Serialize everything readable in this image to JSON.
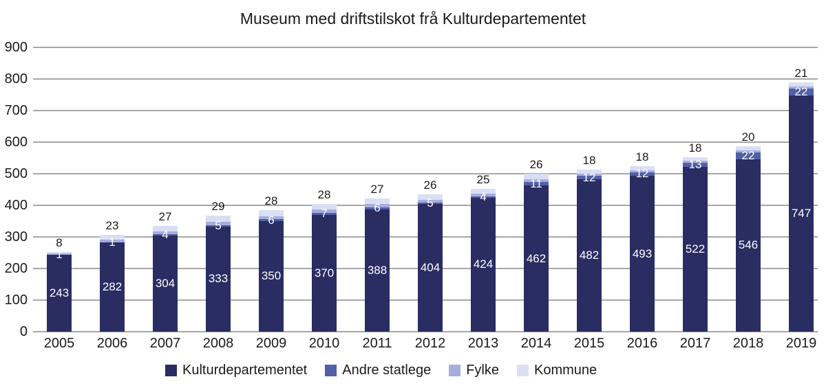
{
  "title": "Museum med driftstilskot frå Kulturdepartementet",
  "chart_data": {
    "type": "bar",
    "stacked": true,
    "title": "Museum med driftstilskot frå Kulturdepartementet",
    "categories": [
      "2005",
      "2006",
      "2007",
      "2008",
      "2009",
      "2010",
      "2011",
      "2012",
      "2013",
      "2014",
      "2015",
      "2016",
      "2017",
      "2018",
      "2019"
    ],
    "series": [
      {
        "name": "Kulturdepartementet",
        "color": "#2a2d62",
        "values": [
          243,
          282,
          304,
          333,
          350,
          370,
          388,
          404,
          424,
          462,
          482,
          493,
          522,
          546,
          747
        ],
        "label_placement": "inside-center-white"
      },
      {
        "name": "Andre statlege",
        "color": "#5360a7",
        "values": [
          1,
          1,
          4,
          5,
          6,
          7,
          6,
          5,
          4,
          11,
          12,
          12,
          13,
          22,
          22
        ],
        "label_placement": "inside-center-white"
      },
      {
        "name": "Fylke",
        "color": "#a5aedd",
        "label_placement": "none"
      },
      {
        "name": "Kommune",
        "color": "#dbdff4",
        "label_placement": "none"
      }
    ],
    "outside_labels": {
      "note": "black labels above each bar; thin Fylke + Kommune cap segments",
      "values": [
        8,
        23,
        27,
        29,
        28,
        28,
        27,
        26,
        25,
        26,
        18,
        18,
        18,
        20,
        21
      ]
    },
    "ylim": [
      0,
      900
    ],
    "ytick_step": 100,
    "yticks": [
      "0",
      "100",
      "200",
      "300",
      "400",
      "500",
      "600",
      "700",
      "800",
      "900"
    ],
    "grid": "horizontal",
    "legend_position": "bottom"
  },
  "colors": {
    "grid": "#a6a6a6",
    "text": "#1a1a1a",
    "background": "#ffffff"
  }
}
